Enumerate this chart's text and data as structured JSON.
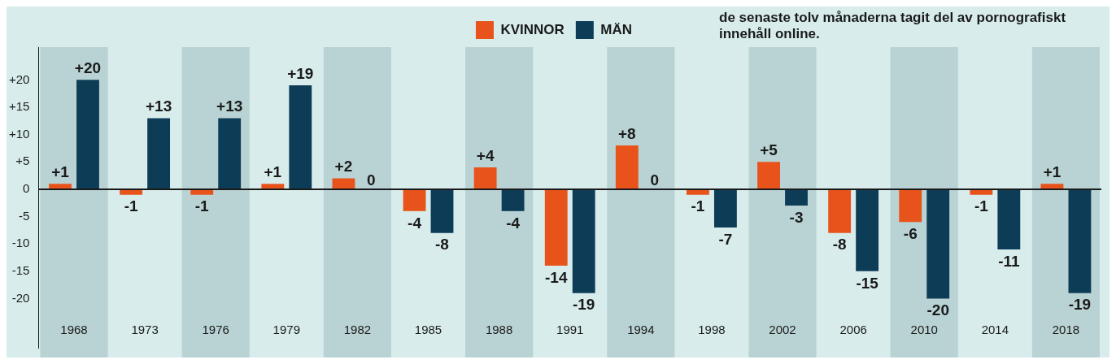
{
  "chart_data": {
    "type": "bar",
    "categories": [
      "1968",
      "1973",
      "1976",
      "1979",
      "1982",
      "1985",
      "1988",
      "1991",
      "1994",
      "1998",
      "2002",
      "2006",
      "2010",
      "2014",
      "2018"
    ],
    "series": [
      {
        "name": "KVINNOR",
        "color": "#e8531c",
        "values": [
          1,
          -1,
          -1,
          1,
          2,
          -4,
          4,
          -14,
          8,
          -1,
          5,
          -8,
          -6,
          -1,
          1
        ],
        "value_labels": [
          "+1",
          "-1",
          "-1",
          "+1",
          "+2",
          "-4",
          "+4",
          "-14",
          "+8",
          "-1",
          "+5",
          "-8",
          "-6",
          "-1",
          "+1"
        ]
      },
      {
        "name": "MÄN",
        "color": "#0d3d56",
        "values": [
          20,
          13,
          13,
          19,
          0,
          -8,
          -4,
          -19,
          0,
          -7,
          -3,
          -15,
          -20,
          -11,
          -19
        ],
        "value_labels": [
          "+20",
          "+13",
          "+13",
          "+19",
          "0",
          "-8",
          "-4",
          "-19",
          "0",
          "-7",
          "-3",
          "-15",
          "-20",
          "-11",
          "-19"
        ]
      }
    ],
    "ylim": [
      -29,
      26
    ],
    "ref_lines": [
      {
        "axis": "y",
        "value": 0,
        "color": "#1a1a1a"
      }
    ],
    "yticks": [
      {
        "value": 20,
        "label": "+20"
      },
      {
        "value": 15,
        "label": "+15"
      },
      {
        "value": 10,
        "label": "+10"
      },
      {
        "value": 5,
        "label": "+5"
      },
      0,
      -5,
      -10,
      -15,
      -20
    ],
    "grid": false,
    "legend": "top",
    "annotations": [
      "de senaste tolv månaderna tagit del av pornografiskt innehåll online."
    ]
  }
}
